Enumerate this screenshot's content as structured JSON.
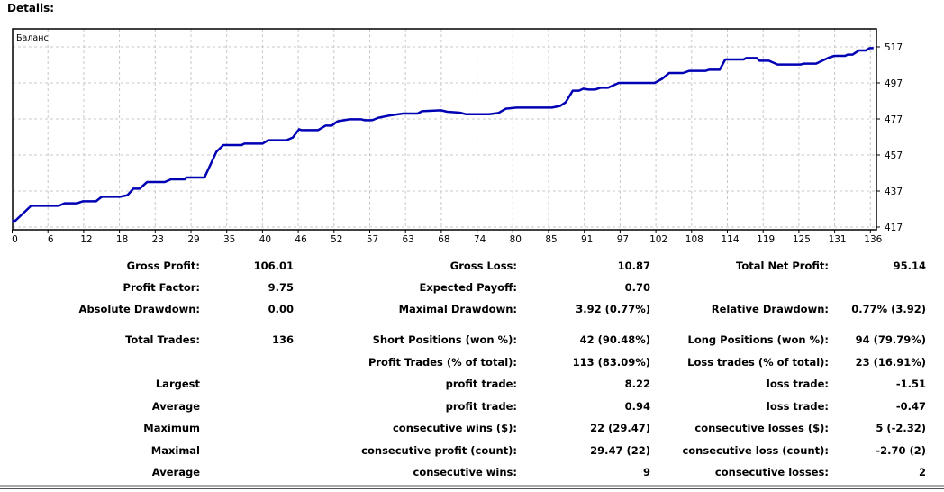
{
  "title": "Details:",
  "chart_data": {
    "type": "line",
    "legend": "Баланс",
    "legend_placement": "top-left",
    "grid": true,
    "line_color": "#0000b4",
    "x_ticks": [
      "0",
      "6",
      "12",
      "18",
      "23",
      "29",
      "35",
      "40",
      "46",
      "52",
      "57",
      "63",
      "68",
      "74",
      "80",
      "85",
      "91",
      "97",
      "102",
      "108",
      "114",
      "119",
      "125",
      "131",
      "136"
    ],
    "y_ticks": [
      "417",
      "437",
      "457",
      "477",
      "497",
      "517"
    ],
    "ylim": [
      417,
      522
    ],
    "xlim": [
      0,
      137.5
    ],
    "series": [
      {
        "x": [
          0,
          0.5,
          3,
          7.4,
          8.3,
          10.3,
          11.2,
          13.3,
          14.2,
          17.1,
          18.3,
          19.2,
          20.2,
          21.4,
          24.2,
          25.2,
          27.4,
          27.6,
          30.5,
          32.4,
          33.5,
          36.4,
          36.8,
          39.7,
          40.6,
          43.5,
          44.5,
          45.5,
          45.9,
          48.5,
          49.7,
          50.7,
          51.6,
          53.5,
          55.4,
          55.9,
          57.1,
          58.1,
          60,
          62,
          64.3,
          65,
          68,
          69,
          71,
          72,
          75.6,
          77.1,
          78.3,
          80,
          85.6,
          86.9,
          87.8,
          88.9,
          89.9,
          90.6,
          91.4,
          92.4,
          93.3,
          94.5,
          96.2,
          101.9,
          103.1,
          104.2,
          106.4,
          107.4,
          110,
          110.5,
          112.2,
          113.1,
          116,
          116.4,
          118.1,
          118.5,
          120,
          121.4,
          125,
          125.6,
          127.5,
          129.5,
          130.4,
          132.1,
          132.5,
          133.3,
          134.3,
          135.4,
          136,
          136.6
        ],
        "y": [
          420.5,
          420.5,
          428.8,
          428.8,
          430.2,
          430.2,
          431.3,
          431.3,
          433.8,
          433.8,
          434.7,
          438.3,
          438.3,
          442,
          442,
          443.5,
          443.5,
          444.5,
          444.5,
          458.8,
          462.5,
          462.5,
          463.3,
          463.3,
          465.2,
          465.2,
          466.7,
          471.3,
          470.8,
          470.8,
          473.3,
          473.3,
          475.7,
          476.8,
          476.8,
          476.3,
          476.3,
          477.7,
          479,
          480,
          480,
          481.3,
          481.8,
          481,
          480.5,
          479.6,
          479.6,
          480.3,
          482.7,
          483.3,
          483.3,
          484.2,
          486.3,
          492.7,
          492.7,
          493.8,
          493.3,
          493.3,
          494.3,
          494.3,
          497,
          497,
          499.3,
          502.5,
          502.5,
          503.7,
          503.7,
          504.3,
          504.3,
          510,
          510,
          510.8,
          510.8,
          509.3,
          509.3,
          507.2,
          507.2,
          507.7,
          507.7,
          511,
          512,
          512,
          512.7,
          512.7,
          515,
          515,
          516.3,
          516.3
        ]
      }
    ]
  },
  "stats": {
    "gross_profit": {
      "label": "Gross Profit:",
      "value": "106.01"
    },
    "gross_loss": {
      "label": "Gross Loss:",
      "value": "10.87"
    },
    "total_net_profit": {
      "label": "Total Net Profit:",
      "value": "95.14"
    },
    "profit_factor": {
      "label": "Profit Factor:",
      "value": "9.75"
    },
    "expected_payoff": {
      "label": "Expected Payoff:",
      "value": "0.70"
    },
    "absolute_drawdown": {
      "label": "Absolute Drawdown:",
      "value": "0.00"
    },
    "maximal_drawdown": {
      "label": "Maximal Drawdown:",
      "value": "3.92 (0.77%)"
    },
    "relative_drawdown": {
      "label": "Relative Drawdown:",
      "value": "0.77% (3.92)"
    },
    "total_trades": {
      "label": "Total Trades:",
      "value": "136"
    },
    "short_positions": {
      "label": "Short Positions (won %):",
      "value": "42 (90.48%)"
    },
    "long_positions": {
      "label": "Long Positions (won %):",
      "value": "94 (79.79%)"
    },
    "profit_trades": {
      "label": "Profit Trades (% of total):",
      "value": "113 (83.09%)"
    },
    "loss_trades": {
      "label": "Loss trades (% of total):",
      "value": "23 (16.91%)"
    },
    "largest": {
      "label": "Largest",
      "profit_label": "profit trade:",
      "profit_value": "8.22",
      "loss_label": "loss trade:",
      "loss_value": "-1.51"
    },
    "average": {
      "label": "Average",
      "profit_label": "profit trade:",
      "profit_value": "0.94",
      "loss_label": "loss trade:",
      "loss_value": "-0.47"
    },
    "maximum": {
      "label": "Maximum",
      "profit_label": "consecutive wins ($):",
      "profit_value": "22 (29.47)",
      "loss_label": "consecutive losses ($):",
      "loss_value": "5 (-2.32)"
    },
    "maximal": {
      "label": "Maximal",
      "profit_label": "consecutive profit (count):",
      "profit_value": "29.47 (22)",
      "loss_label": "consecutive loss (count):",
      "loss_value": "-2.70 (2)"
    },
    "average_consec": {
      "label": "Average",
      "profit_label": "consecutive wins:",
      "profit_value": "9",
      "loss_label": "consecutive losses:",
      "loss_value": "2"
    }
  }
}
